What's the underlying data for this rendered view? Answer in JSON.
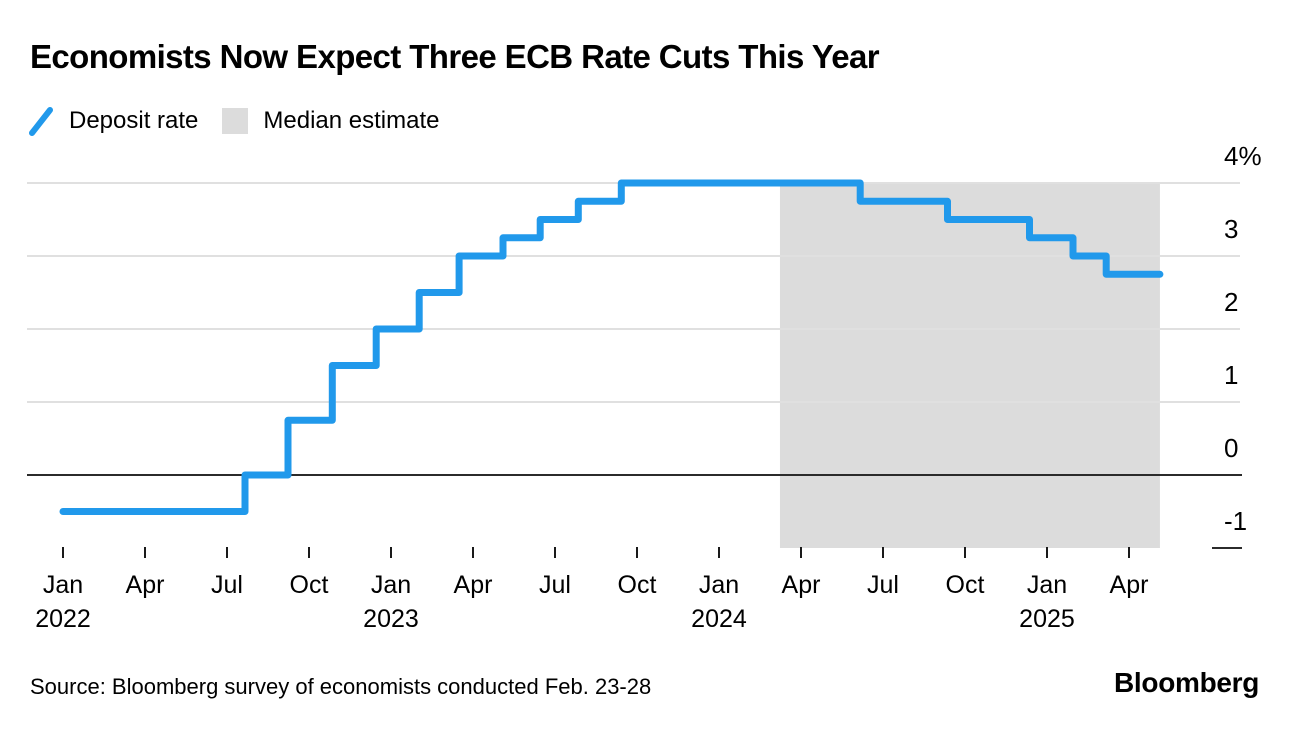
{
  "title": "Economists Now Expect Three ECB Rate Cuts This Year",
  "legend": {
    "deposit_rate": "Deposit rate",
    "median_estimate": "Median estimate"
  },
  "source": "Source: Bloomberg survey of economists conducted Feb. 23-28",
  "logo_text": "Bloomberg",
  "colors": {
    "deposit_rate_blue": "#2199EB",
    "median_estimate_gray": "#DCDCDC",
    "gridline": "#E0E0E0",
    "axis_black": "#2B2B2B",
    "tick_black": "#1A1A1A"
  },
  "chart_data": {
    "type": "line",
    "line_style": "step-after",
    "title": "Economists Now Expect Three ECB Rate Cuts This Year",
    "unit": "%",
    "series": [
      {
        "name": "Deposit rate",
        "color": "#2199EB",
        "points": [
          [
            "2022-01-01",
            -0.5
          ],
          [
            "2022-07-21",
            0.0
          ],
          [
            "2022-09-08",
            0.75
          ],
          [
            "2022-10-27",
            1.5
          ],
          [
            "2022-12-15",
            2.0
          ],
          [
            "2023-02-02",
            2.5
          ],
          [
            "2023-03-16",
            3.0
          ],
          [
            "2023-05-04",
            3.25
          ],
          [
            "2023-06-15",
            3.5
          ],
          [
            "2023-07-27",
            3.75
          ],
          [
            "2023-09-14",
            4.0
          ],
          [
            "2024-06-06",
            3.75
          ],
          [
            "2024-09-12",
            3.5
          ],
          [
            "2024-12-12",
            3.25
          ],
          [
            "2025-01-30",
            3.0
          ],
          [
            "2025-03-06",
            2.75
          ],
          [
            "2025-05-05",
            2.75
          ]
        ]
      }
    ],
    "median_estimate_region": {
      "label": "Median estimate",
      "start": "2024-03-08",
      "end": "2025-05-05"
    },
    "x_axis": {
      "start": "2022-01-01",
      "end": "2025-05-05",
      "tick_interval_months": 3,
      "ticks": [
        {
          "month": "Jan",
          "year": "2022"
        },
        {
          "month": "Apr"
        },
        {
          "month": "Jul"
        },
        {
          "month": "Oct"
        },
        {
          "month": "Jan",
          "year": "2023"
        },
        {
          "month": "Apr"
        },
        {
          "month": "Jul"
        },
        {
          "month": "Oct"
        },
        {
          "month": "Jan",
          "year": "2024"
        },
        {
          "month": "Apr"
        },
        {
          "month": "Jul"
        },
        {
          "month": "Oct"
        },
        {
          "month": "Jan",
          "year": "2025"
        },
        {
          "month": "Apr"
        }
      ]
    },
    "y_axis": {
      "min": -1,
      "max": 4,
      "ticks": [
        {
          "value": 4,
          "label": "4%"
        },
        {
          "value": 3,
          "label": "3"
        },
        {
          "value": 2,
          "label": "2"
        },
        {
          "value": 1,
          "label": "1"
        },
        {
          "value": 0,
          "label": "0"
        },
        {
          "value": -1,
          "label": "-1"
        }
      ]
    }
  }
}
